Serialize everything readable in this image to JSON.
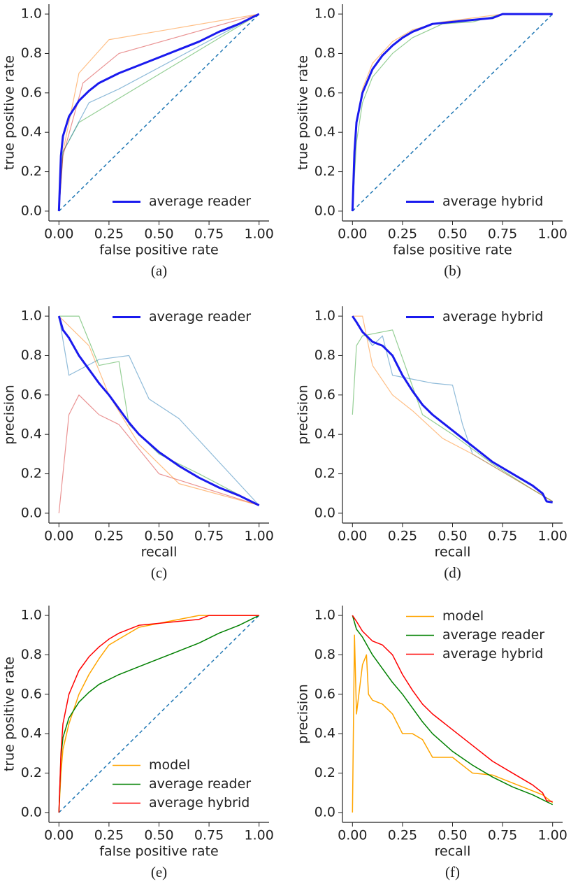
{
  "chart_data": [
    {
      "type": "line",
      "caption": "(a)",
      "xlabel": "false positive rate",
      "ylabel": "true positive rate",
      "legend": "lower right",
      "xlim": [
        -0.05,
        1.05
      ],
      "ylim": [
        -0.05,
        1.05
      ],
      "xticks": [
        {
          "value": 0,
          "label": "0.00"
        },
        {
          "value": 0.25,
          "label": "0.25"
        },
        {
          "value": 0.5,
          "label": "0.50"
        },
        {
          "value": 0.75,
          "label": "0.75"
        },
        {
          "value": 1,
          "label": "1.00"
        }
      ],
      "yticks": [
        {
          "value": 0,
          "label": "0.0"
        },
        0.2,
        0.4,
        0.6,
        0.8,
        {
          "value": 1,
          "label": "1.0"
        }
      ],
      "series": [
        {
          "color": "#ff7f0e80",
          "width": 1.2,
          "x": [
            0,
            0.02,
            0.1,
            0.25,
            1
          ],
          "values": [
            0,
            0.3,
            0.7,
            0.87,
            1
          ]
        },
        {
          "color": "#2ca02c80",
          "width": 1.2,
          "x": [
            0,
            0.02,
            0.1,
            1
          ],
          "values": [
            0,
            0.3,
            0.45,
            1
          ]
        },
        {
          "color": "#1f77b480",
          "width": 1.2,
          "x": [
            0,
            0.02,
            0.15,
            0.3,
            1
          ],
          "values": [
            0,
            0.3,
            0.55,
            0.62,
            1
          ]
        },
        {
          "color": "#d6272880",
          "width": 1.2,
          "x": [
            0,
            0.02,
            0.12,
            0.3,
            1
          ],
          "values": [
            0,
            0.28,
            0.65,
            0.8,
            1
          ]
        },
        {
          "color": "#1f77b4",
          "width": 1.5,
          "dash": true,
          "x": [
            0,
            1
          ],
          "values": [
            0,
            1
          ]
        },
        {
          "name": "average reader",
          "color": "#1a1aee",
          "width": 3,
          "x": [
            0,
            0.01,
            0.02,
            0.05,
            0.1,
            0.15,
            0.2,
            0.3,
            0.4,
            0.5,
            0.6,
            0.7,
            0.8,
            0.9,
            1
          ],
          "values": [
            0,
            0.28,
            0.38,
            0.48,
            0.56,
            0.61,
            0.65,
            0.7,
            0.74,
            0.78,
            0.82,
            0.86,
            0.91,
            0.95,
            1
          ]
        }
      ]
    },
    {
      "type": "line",
      "caption": "(b)",
      "xlabel": "false positive rate",
      "ylabel": "true positive rate",
      "legend": "lower right",
      "xlim": [
        -0.05,
        1.05
      ],
      "ylim": [
        -0.05,
        1.05
      ],
      "xticks": [
        {
          "value": 0,
          "label": "0.00"
        },
        {
          "value": 0.25,
          "label": "0.25"
        },
        {
          "value": 0.5,
          "label": "0.50"
        },
        {
          "value": 0.75,
          "label": "0.75"
        },
        {
          "value": 1,
          "label": "1.00"
        }
      ],
      "yticks": [
        {
          "value": 0,
          "label": "0.0"
        },
        0.2,
        0.4,
        0.6,
        0.8,
        {
          "value": 1,
          "label": "1.0"
        }
      ],
      "series": [
        {
          "color": "#ff7f0e80",
          "width": 1.2,
          "x": [
            0,
            0.02,
            0.05,
            0.1,
            0.2,
            0.3,
            0.45,
            0.6,
            0.75,
            1
          ],
          "values": [
            0,
            0.45,
            0.62,
            0.75,
            0.86,
            0.92,
            0.96,
            0.98,
            1,
            1
          ]
        },
        {
          "color": "#2ca02c80",
          "width": 1.2,
          "x": [
            0,
            0.02,
            0.05,
            0.1,
            0.2,
            0.3,
            0.45,
            0.6,
            0.75,
            1
          ],
          "values": [
            0,
            0.35,
            0.55,
            0.68,
            0.8,
            0.88,
            0.95,
            0.96,
            1,
            1
          ]
        },
        {
          "color": "#1f77b4",
          "width": 1.5,
          "dash": true,
          "x": [
            0,
            1
          ],
          "values": [
            0,
            1
          ]
        },
        {
          "name": "average hybrid",
          "color": "#1a1aee",
          "width": 3,
          "x": [
            0,
            0.01,
            0.02,
            0.05,
            0.1,
            0.15,
            0.2,
            0.25,
            0.3,
            0.4,
            0.5,
            0.6,
            0.7,
            0.75,
            0.8,
            1
          ],
          "values": [
            0,
            0.3,
            0.45,
            0.6,
            0.72,
            0.79,
            0.84,
            0.88,
            0.91,
            0.95,
            0.96,
            0.97,
            0.98,
            1,
            1,
            1
          ]
        }
      ]
    },
    {
      "type": "line",
      "caption": "(c)",
      "xlabel": "recall",
      "ylabel": "precision",
      "legend": "upper right",
      "xlim": [
        -0.05,
        1.05
      ],
      "ylim": [
        -0.05,
        1.05
      ],
      "xticks": [
        {
          "value": 0,
          "label": "0.00"
        },
        {
          "value": 0.25,
          "label": "0.25"
        },
        {
          "value": 0.5,
          "label": "0.50"
        },
        {
          "value": 0.75,
          "label": "0.75"
        },
        {
          "value": 1,
          "label": "1.00"
        }
      ],
      "yticks": [
        {
          "value": 0,
          "label": "0.0"
        },
        0.2,
        0.4,
        0.6,
        0.8,
        {
          "value": 1,
          "label": "1.0"
        }
      ],
      "series": [
        {
          "color": "#1f77b480",
          "width": 1.2,
          "x": [
            0,
            0.05,
            0.2,
            0.35,
            0.45,
            0.6,
            1
          ],
          "values": [
            1,
            0.7,
            0.78,
            0.8,
            0.58,
            0.48,
            0.04
          ]
        },
        {
          "color": "#d6272880",
          "width": 1.2,
          "x": [
            0,
            0.05,
            0.1,
            0.2,
            0.3,
            0.5,
            1
          ],
          "values": [
            0,
            0.5,
            0.6,
            0.5,
            0.45,
            0.2,
            0.04
          ]
        },
        {
          "color": "#2ca02c80",
          "width": 1.2,
          "x": [
            0,
            0.1,
            0.2,
            0.3,
            0.35,
            0.5,
            0.7,
            1
          ],
          "values": [
            1,
            1,
            0.75,
            0.77,
            0.45,
            0.3,
            0.2,
            0.04
          ]
        },
        {
          "color": "#ff7f0e80",
          "width": 1.2,
          "x": [
            0,
            0.05,
            0.15,
            0.25,
            0.4,
            0.6,
            1
          ],
          "values": [
            1,
            0.95,
            0.85,
            0.6,
            0.35,
            0.15,
            0.04
          ]
        },
        {
          "name": "average reader",
          "color": "#1a1aee",
          "width": 3,
          "x": [
            0,
            0.02,
            0.05,
            0.1,
            0.15,
            0.2,
            0.25,
            0.3,
            0.35,
            0.4,
            0.5,
            0.6,
            0.7,
            0.8,
            0.9,
            1
          ],
          "values": [
            1,
            0.93,
            0.89,
            0.8,
            0.73,
            0.66,
            0.6,
            0.53,
            0.46,
            0.4,
            0.31,
            0.24,
            0.18,
            0.13,
            0.09,
            0.04
          ]
        }
      ]
    },
    {
      "type": "line",
      "caption": "(d)",
      "xlabel": "recall",
      "ylabel": "precision",
      "legend": "upper right",
      "xlim": [
        -0.05,
        1.05
      ],
      "ylim": [
        -0.05,
        1.05
      ],
      "xticks": [
        {
          "value": 0,
          "label": "0.00"
        },
        {
          "value": 0.25,
          "label": "0.25"
        },
        {
          "value": 0.5,
          "label": "0.50"
        },
        {
          "value": 0.75,
          "label": "0.75"
        },
        {
          "value": 1,
          "label": "1.00"
        }
      ],
      "yticks": [
        {
          "value": 0,
          "label": "0.0"
        },
        0.2,
        0.4,
        0.6,
        0.8,
        {
          "value": 1,
          "label": "1.0"
        }
      ],
      "series": [
        {
          "color": "#1f77b480",
          "width": 1.2,
          "x": [
            0,
            0.1,
            0.15,
            0.2,
            0.3,
            0.4,
            0.5,
            0.55,
            0.6,
            0.8,
            1
          ],
          "values": [
            1,
            0.85,
            0.9,
            0.7,
            0.68,
            0.66,
            0.65,
            0.45,
            0.3,
            0.18,
            0.06
          ]
        },
        {
          "color": "#2ca02c80",
          "width": 1.2,
          "x": [
            0,
            0.02,
            0.05,
            0.2,
            0.35,
            0.5,
            0.7,
            0.9,
            1
          ],
          "values": [
            0.5,
            0.85,
            0.9,
            0.93,
            0.5,
            0.4,
            0.25,
            0.12,
            0.06
          ]
        },
        {
          "color": "#ff7f0e80",
          "width": 1.2,
          "x": [
            0,
            0.05,
            0.1,
            0.2,
            0.3,
            0.45,
            0.6,
            0.8,
            1
          ],
          "values": [
            1,
            1,
            0.75,
            0.6,
            0.52,
            0.38,
            0.3,
            0.18,
            0.06
          ]
        },
        {
          "name": "average hybrid",
          "color": "#1a1aee",
          "width": 3,
          "x": [
            0,
            0.02,
            0.05,
            0.1,
            0.15,
            0.2,
            0.25,
            0.3,
            0.35,
            0.4,
            0.45,
            0.5,
            0.6,
            0.7,
            0.8,
            0.9,
            0.95,
            0.97,
            1
          ],
          "values": [
            1,
            0.97,
            0.92,
            0.87,
            0.85,
            0.8,
            0.7,
            0.62,
            0.55,
            0.5,
            0.46,
            0.42,
            0.34,
            0.26,
            0.2,
            0.14,
            0.1,
            0.06,
            0.055
          ]
        }
      ]
    },
    {
      "type": "line",
      "caption": "(e)",
      "xlabel": "false positive rate",
      "ylabel": "true positive rate",
      "legend": "lower right",
      "xlim": [
        -0.05,
        1.05
      ],
      "ylim": [
        -0.05,
        1.05
      ],
      "xticks": [
        {
          "value": 0,
          "label": "0.00"
        },
        {
          "value": 0.25,
          "label": "0.25"
        },
        {
          "value": 0.5,
          "label": "0.50"
        },
        {
          "value": 0.75,
          "label": "0.75"
        },
        {
          "value": 1,
          "label": "1.00"
        }
      ],
      "yticks": [
        {
          "value": 0,
          "label": "0.0"
        },
        0.2,
        0.4,
        0.6,
        0.8,
        {
          "value": 1,
          "label": "1.0"
        }
      ],
      "series": [
        {
          "color": "#1f77b4",
          "width": 1.5,
          "dash": true,
          "x": [
            0,
            1
          ],
          "values": [
            0,
            1
          ]
        },
        {
          "name": "model",
          "color": "#ffa500",
          "width": 1.5,
          "x": [
            0,
            0.01,
            0.02,
            0.05,
            0.1,
            0.15,
            0.2,
            0.25,
            0.3,
            0.4,
            0.5,
            0.6,
            0.7,
            0.8,
            1
          ],
          "values": [
            0,
            0.2,
            0.32,
            0.45,
            0.6,
            0.7,
            0.78,
            0.85,
            0.88,
            0.94,
            0.96,
            0.98,
            1,
            1,
            1
          ]
        },
        {
          "name": "average reader",
          "color": "#008000",
          "width": 1.5,
          "x": [
            0,
            0.01,
            0.02,
            0.05,
            0.1,
            0.15,
            0.2,
            0.3,
            0.4,
            0.5,
            0.6,
            0.7,
            0.8,
            0.9,
            1
          ],
          "values": [
            0,
            0.28,
            0.38,
            0.48,
            0.56,
            0.61,
            0.65,
            0.7,
            0.74,
            0.78,
            0.82,
            0.86,
            0.91,
            0.95,
            1
          ]
        },
        {
          "name": "average hybrid",
          "color": "#ff0000",
          "width": 1.5,
          "x": [
            0,
            0.01,
            0.02,
            0.05,
            0.1,
            0.15,
            0.2,
            0.25,
            0.3,
            0.4,
            0.5,
            0.6,
            0.7,
            0.75,
            0.8,
            1
          ],
          "values": [
            0,
            0.3,
            0.45,
            0.6,
            0.72,
            0.79,
            0.84,
            0.88,
            0.91,
            0.95,
            0.96,
            0.97,
            0.98,
            1,
            1,
            1
          ]
        }
      ]
    },
    {
      "type": "line",
      "caption": "(f)",
      "xlabel": "recall",
      "ylabel": "precision",
      "legend": "upper right",
      "xlim": [
        -0.05,
        1.05
      ],
      "ylim": [
        -0.05,
        1.05
      ],
      "xticks": [
        {
          "value": 0,
          "label": "0.00"
        },
        {
          "value": 0.25,
          "label": "0.25"
        },
        {
          "value": 0.5,
          "label": "0.50"
        },
        {
          "value": 0.75,
          "label": "0.75"
        },
        {
          "value": 1,
          "label": "1.00"
        }
      ],
      "yticks": [
        {
          "value": 0,
          "label": "0.0"
        },
        0.2,
        0.4,
        0.6,
        0.8,
        {
          "value": 1,
          "label": "1.0"
        }
      ],
      "series": [
        {
          "name": "model",
          "color": "#ffa500",
          "width": 1.5,
          "x": [
            0,
            0.01,
            0.02,
            0.05,
            0.07,
            0.08,
            0.1,
            0.15,
            0.2,
            0.25,
            0.3,
            0.35,
            0.4,
            0.5,
            0.6,
            0.7,
            0.8,
            0.9,
            0.95,
            1
          ],
          "values": [
            0,
            0.9,
            0.5,
            0.75,
            0.8,
            0.6,
            0.57,
            0.55,
            0.5,
            0.4,
            0.4,
            0.37,
            0.28,
            0.28,
            0.2,
            0.19,
            0.15,
            0.11,
            0.09,
            0.05
          ]
        },
        {
          "name": "average reader",
          "color": "#008000",
          "width": 1.5,
          "x": [
            0,
            0.02,
            0.05,
            0.1,
            0.15,
            0.2,
            0.25,
            0.3,
            0.35,
            0.4,
            0.5,
            0.6,
            0.7,
            0.8,
            0.9,
            1
          ],
          "values": [
            1,
            0.93,
            0.89,
            0.8,
            0.73,
            0.66,
            0.6,
            0.53,
            0.46,
            0.4,
            0.31,
            0.24,
            0.18,
            0.13,
            0.09,
            0.04
          ]
        },
        {
          "name": "average hybrid",
          "color": "#ff0000",
          "width": 1.5,
          "x": [
            0,
            0.02,
            0.05,
            0.1,
            0.15,
            0.2,
            0.25,
            0.3,
            0.35,
            0.4,
            0.45,
            0.5,
            0.6,
            0.7,
            0.8,
            0.9,
            0.95,
            0.97,
            1
          ],
          "values": [
            1,
            0.97,
            0.92,
            0.87,
            0.85,
            0.8,
            0.7,
            0.62,
            0.55,
            0.5,
            0.46,
            0.42,
            0.34,
            0.26,
            0.2,
            0.14,
            0.1,
            0.06,
            0.055
          ]
        }
      ]
    }
  ]
}
